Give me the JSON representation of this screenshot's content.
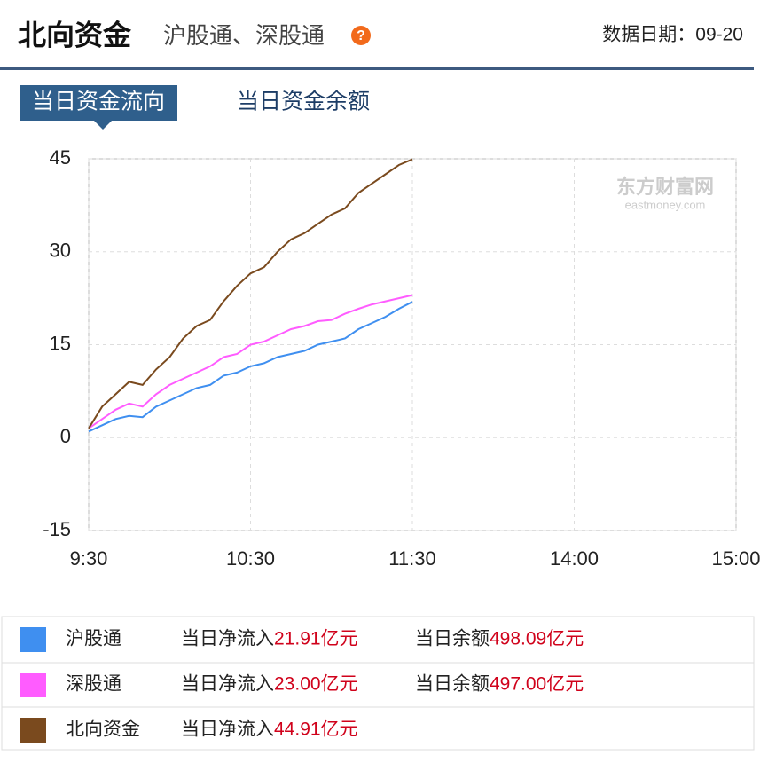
{
  "header": {
    "title": "北向资金",
    "subtitle": "沪股通、深股通",
    "date": "数据日期：09-20"
  },
  "tabs": [
    "当日资金流向",
    "当日资金余额"
  ],
  "chart_data": {
    "type": "line",
    "watermark": {
      "name": "东方财富网",
      "url": "eastmoney.com"
    },
    "x": [
      0,
      5,
      10,
      15,
      20,
      25,
      30,
      35,
      40,
      45,
      50,
      55,
      60,
      65,
      70,
      75,
      80,
      85,
      90,
      95,
      100,
      105,
      110,
      115,
      120
    ],
    "xlim": [
      0,
      240
    ],
    "xticks": [
      {
        "value": 0,
        "label": "9:30"
      },
      {
        "value": 60,
        "label": "10:30"
      },
      {
        "value": 120,
        "label": "11:30"
      },
      {
        "value": 180,
        "label": "14:00"
      },
      {
        "value": 240,
        "label": "15:00"
      }
    ],
    "ylim": [
      -15,
      45
    ],
    "yticks": [
      -15,
      0,
      15,
      30,
      45
    ],
    "grid": true,
    "series": [
      {
        "name": "沪股通",
        "color": "#3f8ff0",
        "values": [
          1,
          2,
          3,
          3.5,
          3.3,
          5,
          6,
          7,
          8,
          8.5,
          10,
          10.5,
          11.5,
          12,
          13,
          13.5,
          14,
          15,
          15.5,
          16,
          17.5,
          18.5,
          19.5,
          20.8,
          21.91
        ]
      },
      {
        "name": "深股通",
        "color": "#ff5cff",
        "values": [
          1.5,
          3,
          4.5,
          5.5,
          5,
          7,
          8.5,
          9.5,
          10.5,
          11.5,
          13,
          13.5,
          15,
          15.5,
          16.5,
          17.5,
          18,
          18.8,
          19,
          20,
          20.8,
          21.5,
          22,
          22.5,
          23.0
        ]
      },
      {
        "name": "北向资金",
        "color": "#7a4a1e",
        "values": [
          1.5,
          5,
          7,
          9,
          8.5,
          11,
          13,
          16,
          18,
          19,
          22,
          24.5,
          26.5,
          27.5,
          30,
          32,
          33,
          34.5,
          36,
          37,
          39.5,
          41,
          42.5,
          44,
          44.91
        ]
      }
    ]
  },
  "legend_table": {
    "rows": [
      {
        "inflow_label": "当日净流入",
        "inflow": "21.91亿元",
        "balance_label": "当日余额",
        "balance": "498.09亿元"
      },
      {
        "inflow_label": "当日净流入",
        "inflow": "23.00亿元",
        "balance_label": "当日余额",
        "balance": "497.00亿元"
      },
      {
        "inflow_label": "当日净流入",
        "inflow": "44.91亿元"
      }
    ]
  }
}
